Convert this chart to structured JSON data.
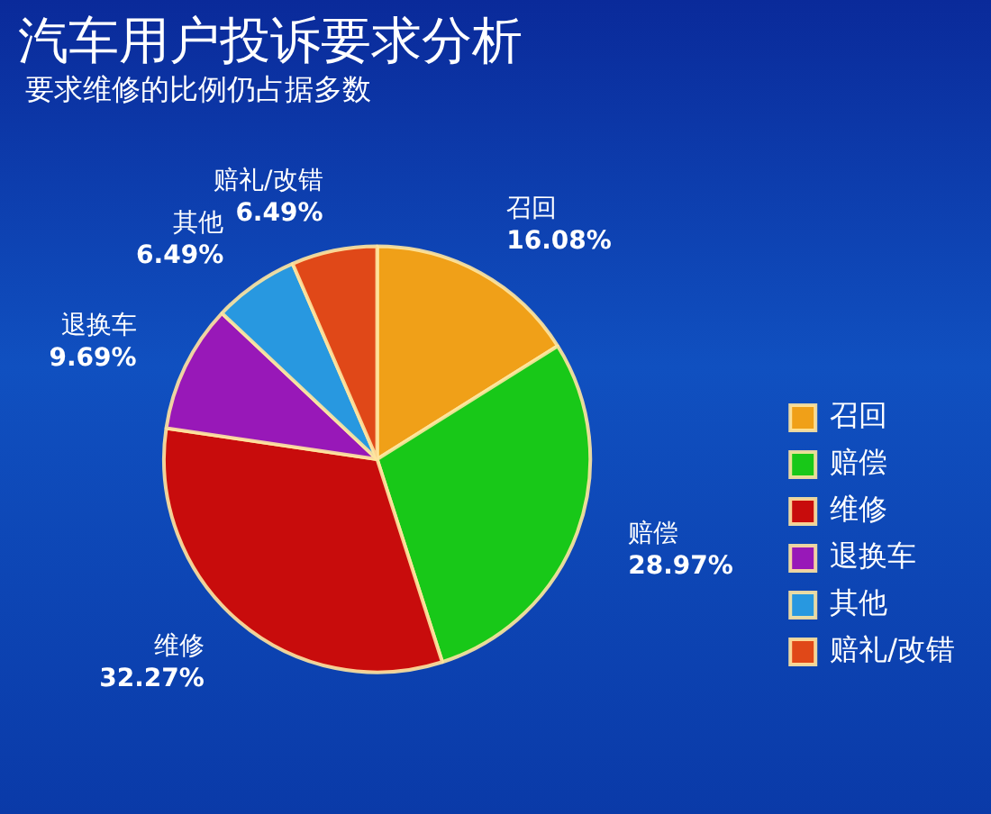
{
  "chart_data": {
    "type": "pie",
    "title": "汽车用户投诉要求分析",
    "subtitle": "要求维修的比例仍占据多数",
    "categories": [
      "召回",
      "赔偿",
      "维修",
      "退换车",
      "其他",
      "赔礼/改错"
    ],
    "values": [
      16.08,
      28.97,
      32.27,
      9.69,
      6.49,
      6.49
    ],
    "value_labels": [
      "16.08%",
      "28.97%",
      "32.27%",
      "9.69%",
      "6.49%",
      "6.49%"
    ],
    "colors": [
      "#f0a018",
      "#18c818",
      "#c80c0c",
      "#9818b8",
      "#2898e0",
      "#e04818"
    ],
    "legend": "bottom right"
  }
}
